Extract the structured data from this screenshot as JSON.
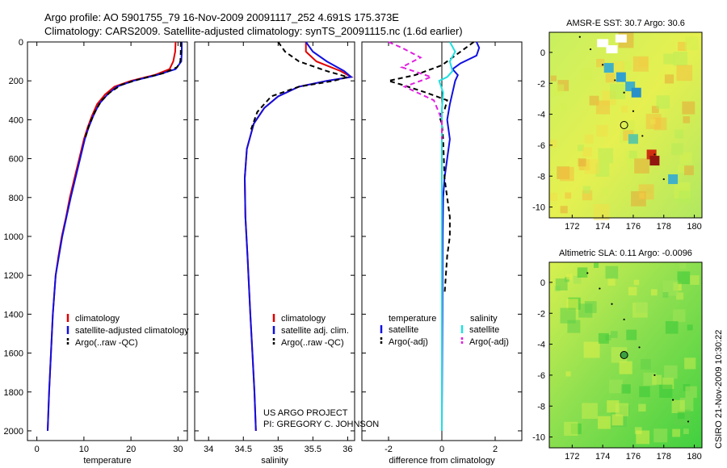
{
  "header": {
    "line1": "Argo profile: AO 5901755_79 16-Nov-2009 20091117_252 4.691S 175.373E",
    "line2": "Climatology: CARS2009. Satellite-adjusted climatology: synTS_20091115.nc (1.6d earlier)"
  },
  "credit": {
    "line1": "US ARGO PROJECT",
    "line2": "PI: GREGORY C. JOHNSON"
  },
  "stamp": "CSIRO 21-Nov-2009 10:30:22",
  "colors": {
    "red": "#e00000",
    "blue": "#1010e0",
    "black": "#000000",
    "cyan": "#20e0e0",
    "magenta": "#e020e0"
  },
  "chart_data": [
    {
      "id": "temperature",
      "type": "line",
      "xlabel": "temperature",
      "ylabel": "",
      "xlim": [
        -2,
        32
      ],
      "ylim": [
        2050,
        0
      ],
      "xticks": [
        0,
        10,
        20,
        30
      ],
      "yticks": [
        0,
        200,
        400,
        600,
        800,
        1000,
        1200,
        1400,
        1600,
        1800,
        2000
      ],
      "legend": {
        "placement": "bottom-left",
        "entries": [
          "climatology",
          "satellite-adjusted climatology",
          "Argo(..raw -QC)"
        ]
      },
      "series": [
        {
          "name": "climatology",
          "color": "red",
          "dash": false,
          "x": [
            29.5,
            29.4,
            29.0,
            28.2,
            25.0,
            20.0,
            16.5,
            14.5,
            12.8,
            11.7,
            10.8,
            10.0,
            9.0,
            8.0,
            7.0,
            6.2,
            5.3,
            4.6,
            4.0,
            3.4,
            3.0,
            2.6,
            2.3
          ],
          "y": [
            0,
            50,
            100,
            140,
            170,
            200,
            230,
            270,
            320,
            380,
            440,
            500,
            600,
            700,
            800,
            900,
            1000,
            1100,
            1200,
            1400,
            1600,
            1800,
            2000
          ]
        },
        {
          "name": "satellite-adjusted climatology",
          "color": "blue",
          "dash": false,
          "x": [
            30.8,
            30.8,
            30.7,
            29.5,
            25.5,
            20.5,
            17.0,
            15.0,
            13.2,
            12.0,
            11.0,
            10.2,
            9.2,
            8.2,
            7.2,
            6.3,
            5.4,
            4.7,
            4.0,
            3.4,
            3.0,
            2.6,
            2.3
          ],
          "y": [
            0,
            50,
            100,
            140,
            170,
            200,
            230,
            270,
            320,
            380,
            440,
            500,
            600,
            700,
            800,
            900,
            1000,
            1100,
            1200,
            1400,
            1600,
            1800,
            2000
          ]
        },
        {
          "name": "Argo(..raw -QC)",
          "color": "black",
          "dash": true,
          "x": [
            30.6,
            30.6,
            30.5,
            29.8,
            27.0,
            22.0,
            18.0,
            15.5,
            13.8,
            12.3,
            11.2,
            10.2
          ],
          "y": [
            0,
            50,
            100,
            130,
            160,
            190,
            220,
            260,
            300,
            360,
            420,
            500
          ]
        }
      ]
    },
    {
      "id": "salinity",
      "type": "line",
      "xlabel": "salinity",
      "ylabel": "",
      "xlim": [
        33.8,
        36.1
      ],
      "ylim": [
        2050,
        0
      ],
      "xticks": [
        34,
        34.5,
        35,
        35.5,
        36
      ],
      "yticks": [
        0,
        200,
        400,
        600,
        800,
        1000,
        1200,
        1400,
        1600,
        1800,
        2000
      ],
      "legend": {
        "placement": "bottom-right",
        "entries": [
          "climatology",
          "satellite adj. clim.",
          "Argo(..raw -QC)"
        ]
      },
      "series": [
        {
          "name": "climatology",
          "color": "red",
          "dash": false,
          "x": [
            35.4,
            35.4,
            35.55,
            35.9,
            36.05,
            35.7,
            35.3,
            35.0,
            34.8,
            34.65,
            34.55,
            34.52,
            34.53,
            34.56,
            34.6,
            34.63,
            34.66,
            34.68
          ],
          "y": [
            0,
            50,
            100,
            150,
            180,
            200,
            230,
            280,
            340,
            420,
            550,
            700,
            900,
            1100,
            1400,
            1600,
            1800,
            2000
          ]
        },
        {
          "name": "satellite adj. clim.",
          "color": "blue",
          "dash": false,
          "x": [
            35.4,
            35.5,
            35.7,
            35.95,
            36.05,
            35.7,
            35.3,
            35.0,
            34.8,
            34.65,
            34.55,
            34.52,
            34.53,
            34.56,
            34.6,
            34.63,
            34.66,
            34.68
          ],
          "y": [
            0,
            50,
            100,
            150,
            180,
            200,
            230,
            280,
            340,
            420,
            550,
            700,
            900,
            1100,
            1400,
            1600,
            1800,
            2000
          ]
        },
        {
          "name": "Argo(..raw -QC)",
          "color": "black",
          "dash": true,
          "x": [
            35.0,
            35.1,
            35.3,
            35.7,
            36.0,
            35.8,
            35.3,
            34.9,
            34.7,
            34.6
          ],
          "y": [
            0,
            50,
            100,
            150,
            180,
            200,
            230,
            280,
            360,
            460
          ]
        }
      ]
    },
    {
      "id": "difference",
      "type": "line",
      "xlabel": "difference from climatology",
      "ylabel": "",
      "xlim": [
        -3,
        3
      ],
      "ylim": [
        2050,
        0
      ],
      "xticks": [
        -2,
        0,
        2
      ],
      "yticks": [
        0,
        200,
        400,
        600,
        800,
        1000,
        1200,
        1400,
        1600,
        1800,
        2000
      ],
      "legend": {
        "placement": "bottom",
        "headers": [
          "temperature",
          "salinity"
        ],
        "entries": [
          "satellite",
          "Argo(-adj)",
          "satellite",
          "Argo(-adj)"
        ]
      },
      "series": [
        {
          "name": "temperature satellite",
          "color": "blue",
          "dash": false,
          "x": [
            1.3,
            1.4,
            1.3,
            0.7,
            0.4,
            0.6,
            0.5,
            0.4,
            0.3,
            0.2,
            0.3,
            0.2,
            0.1,
            0.05,
            0.03,
            0.02,
            0.0
          ],
          "y": [
            0,
            30,
            70,
            110,
            140,
            170,
            200,
            260,
            320,
            400,
            500,
            600,
            700,
            800,
            1000,
            1400,
            2000
          ]
        },
        {
          "name": "temperature Argo(-adj)",
          "color": "black",
          "dash": true,
          "x": [
            1.2,
            0.0,
            -1.0,
            -2.0,
            -1.5,
            -0.6,
            0.2,
            0.1,
            -0.1,
            0.0,
            0.05,
            0.1,
            0.3,
            0.3,
            0.2,
            0.1
          ],
          "y": [
            0,
            120,
            170,
            200,
            220,
            260,
            300,
            350,
            380,
            420,
            500,
            700,
            900,
            1000,
            1100,
            1300
          ]
        },
        {
          "name": "salinity satellite",
          "color": "cyan",
          "dash": false,
          "x": [
            0.3,
            0.5,
            0.3,
            0.4,
            0.2,
            -0.1,
            0.05,
            0.0,
            0.0,
            0.0,
            0.0,
            0.0
          ],
          "y": [
            0,
            50,
            100,
            150,
            180,
            200,
            260,
            350,
            500,
            800,
            1400,
            2000
          ]
        },
        {
          "name": "salinity Argo(-adj)",
          "color": "magenta",
          "dash": true,
          "x": [
            -2.0,
            -1.5,
            -0.8,
            -1.5,
            -0.4,
            -1.4,
            -0.3,
            0.0,
            0.0
          ],
          "y": [
            0,
            30,
            80,
            130,
            180,
            230,
            300,
            400,
            500
          ]
        }
      ]
    },
    {
      "id": "sst_map",
      "type": "heatmap",
      "title": "AMSR-E SST: 30.7 Argo: 30.6",
      "xlim": [
        170.5,
        180.5
      ],
      "ylim": [
        -10.7,
        1.3
      ],
      "xticks": [
        172,
        174,
        176,
        178,
        180
      ],
      "yticks": [
        0,
        -2,
        -4,
        -6,
        -8,
        -10
      ],
      "marker": {
        "lon": 175.4,
        "lat": -4.7
      },
      "track": {
        "lon": [
          172.5,
          173.2,
          174.0,
          174.8,
          175.4,
          176.0,
          176.6,
          177.4,
          178.0
        ],
        "lat": [
          1.0,
          0.2,
          -0.8,
          -1.8,
          -2.6,
          -3.8,
          -5.4,
          -6.6,
          -8.2
        ]
      }
    },
    {
      "id": "sla_map",
      "type": "heatmap",
      "title": "Altimetric SLA: 0.11 Argo: -0.0096",
      "xlim": [
        170.5,
        180.5
      ],
      "ylim": [
        -10.7,
        1.3
      ],
      "xticks": [
        172,
        174,
        176,
        178,
        180
      ],
      "yticks": [
        0,
        -2,
        -4,
        -6,
        -8,
        -10
      ],
      "marker": {
        "lon": 175.4,
        "lat": -4.7
      },
      "track": {
        "lon": [
          173.0,
          173.8,
          174.6,
          175.4,
          176.4,
          177.4,
          178.6,
          179.6
        ],
        "lat": [
          0.6,
          -0.4,
          -1.4,
          -2.4,
          -4.2,
          -6.0,
          -7.6,
          -9.0
        ]
      }
    }
  ]
}
